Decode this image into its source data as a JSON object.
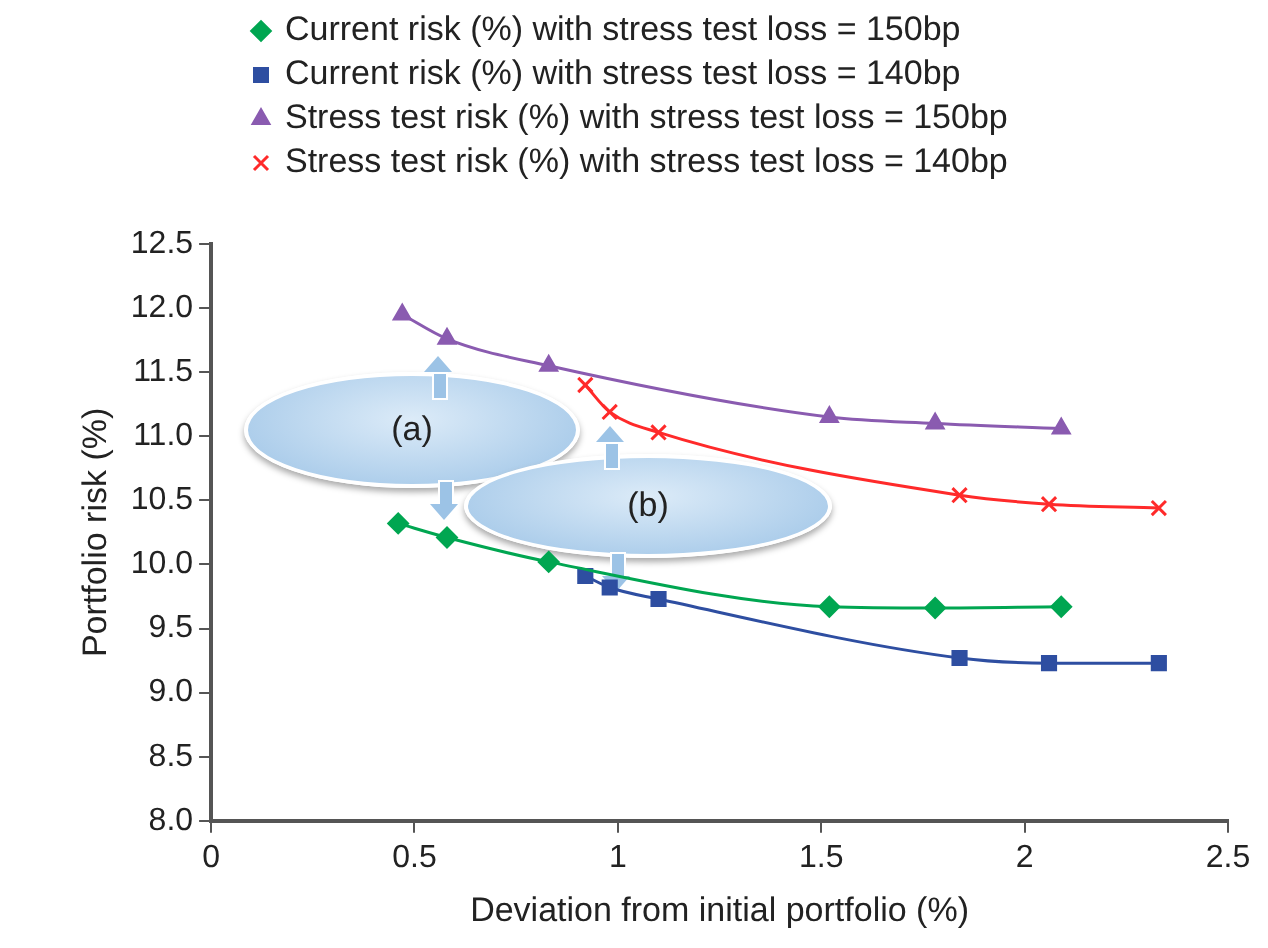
{
  "chart_data": {
    "type": "line",
    "xlabel": "Deviation from initial portfolio (%)",
    "ylabel": "Portfolio risk (%)",
    "xlim": [
      0,
      2.5
    ],
    "xticks": [
      {
        "value": 0,
        "label": "0"
      },
      {
        "value": 0.5,
        "label": "0.5"
      },
      {
        "value": 1,
        "label": "1"
      },
      {
        "value": 1.5,
        "label": "1.5"
      },
      {
        "value": 2,
        "label": "2"
      },
      {
        "value": 2.5,
        "label": "2.5"
      }
    ],
    "ylim": [
      8,
      12.5
    ],
    "yticks": [
      {
        "value": 8,
        "label": "8.0"
      },
      {
        "value": 8.5,
        "label": "8.5"
      },
      {
        "value": 9,
        "label": "9.0"
      },
      {
        "value": 9.5,
        "label": "9.5"
      },
      {
        "value": 10,
        "label": "10.0"
      },
      {
        "value": 10.5,
        "label": "10.5"
      },
      {
        "value": 11,
        "label": "11.0"
      },
      {
        "value": 11.5,
        "label": "11.5"
      },
      {
        "value": 12,
        "label": "12.0"
      },
      {
        "value": 12.5,
        "label": "12.5"
      }
    ],
    "grid": false,
    "legend": "top left",
    "annotations": [
      "(a)",
      "(b)"
    ],
    "series": [
      {
        "name": "Current risk (%) with stress test loss = 150bp",
        "color": "#00a651",
        "marker": "diamond",
        "x": [
          0.46,
          0.58,
          0.83,
          1.52,
          1.78,
          2.09
        ],
        "values": [
          10.32,
          10.21,
          10.02,
          9.67,
          9.66,
          9.67
        ]
      },
      {
        "name": "Current risk (%) with stress test loss = 140bp",
        "color": "#2e4ea1",
        "marker": "square",
        "x": [
          0.92,
          0.98,
          1.1,
          1.84,
          2.06,
          2.33
        ],
        "values": [
          9.91,
          9.82,
          9.73,
          9.27,
          9.23,
          9.23
        ]
      },
      {
        "name": "Stress test risk (%) with stress test loss = 150bp",
        "color": "#8a5bb0",
        "marker": "triangle",
        "x": [
          0.47,
          0.58,
          0.83,
          1.52,
          1.78,
          2.09
        ],
        "values": [
          11.95,
          11.76,
          11.55,
          11.15,
          11.1,
          11.06
        ]
      },
      {
        "name": "Stress test risk (%) with stress test loss = 140bp",
        "color": "#ff2a2a",
        "marker": "cross",
        "x": [
          0.92,
          0.98,
          1.1,
          1.84,
          2.06,
          2.33
        ],
        "values": [
          11.4,
          11.19,
          11.03,
          10.54,
          10.47,
          10.44
        ]
      }
    ]
  }
}
